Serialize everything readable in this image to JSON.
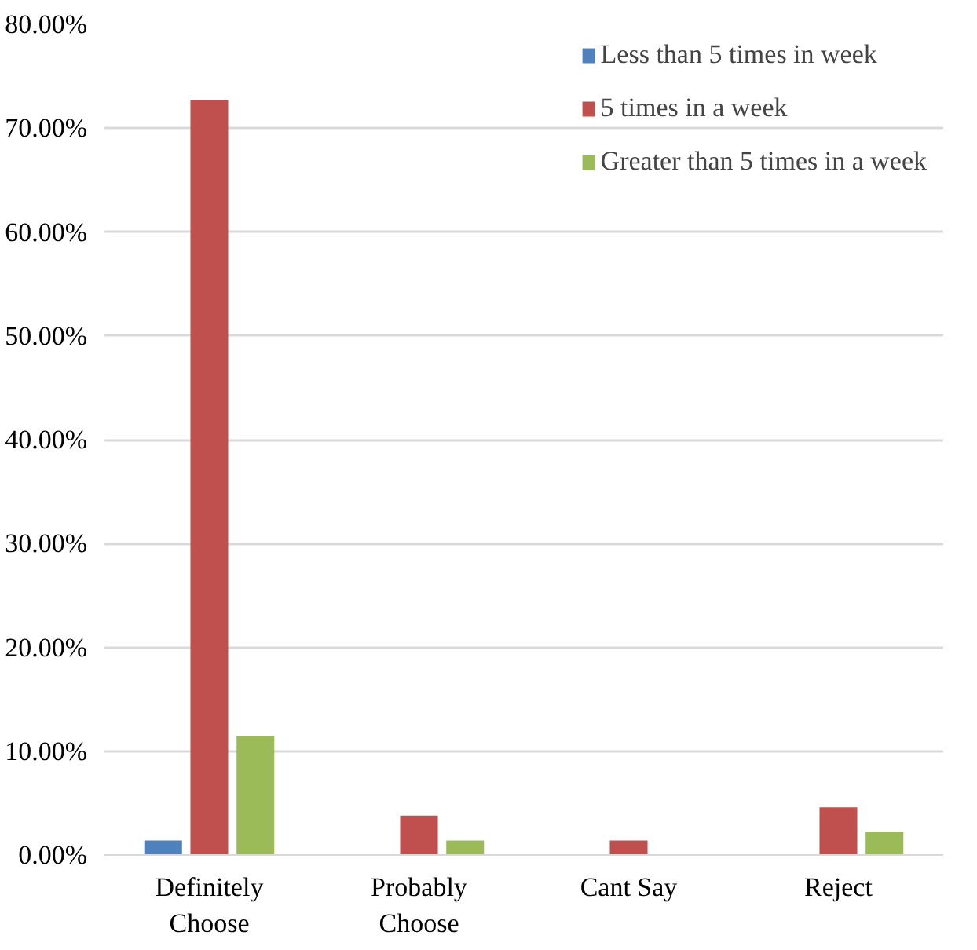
{
  "chart_data": {
    "type": "bar",
    "categories": [
      "Definitely\nChoose",
      "Probably\nChoose",
      "Cant Say",
      "Reject"
    ],
    "series": [
      {
        "name": "Less than 5 times in week",
        "color": "#4f81bd",
        "values": [
          1.4,
          0,
          0,
          0
        ]
      },
      {
        "name": "5 times in a week",
        "color": "#c0504d",
        "values": [
          72.7,
          3.8,
          1.4,
          4.6
        ]
      },
      {
        "name": "Greater than 5 times in a week",
        "color": "#9bbb59",
        "values": [
          11.5,
          1.4,
          0,
          2.2
        ]
      }
    ],
    "ylim": [
      0,
      80
    ],
    "yticks": [
      {
        "value": 0,
        "label": "0.00%"
      },
      {
        "value": 10,
        "label": "10.00%"
      },
      {
        "value": 20,
        "label": "20.00%"
      },
      {
        "value": 30,
        "label": "30.00%"
      },
      {
        "value": 40,
        "label": "40.00%"
      },
      {
        "value": 50,
        "label": "50.00%"
      },
      {
        "value": 60,
        "label": "60.00%"
      },
      {
        "value": 70,
        "label": "70.00%"
      },
      {
        "value": 80,
        "label": "80.00%"
      }
    ],
    "grid": "y",
    "legend": "top right"
  }
}
